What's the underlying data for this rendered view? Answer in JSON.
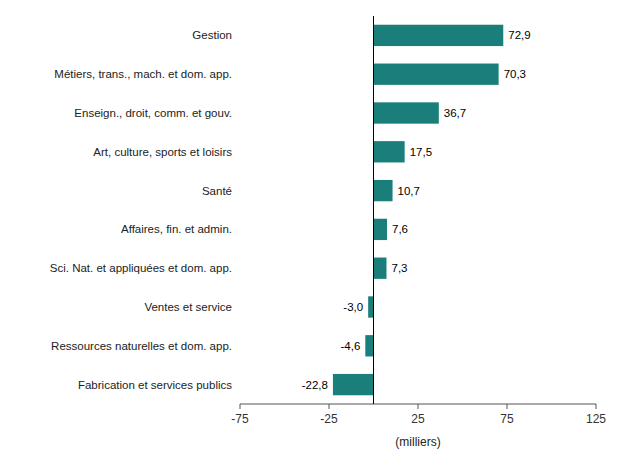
{
  "chart_data": {
    "type": "bar",
    "orientation": "horizontal",
    "categories": [
      "Fabrication et services publics",
      "Ressources naturelles et dom. app.",
      "Ventes et service",
      "Sci. Nat. et appliquées et dom. app.",
      "Affaires, fin. et admin.",
      "Santé",
      "Art, culture, sports et loisirs",
      "Enseign., droit, comm. et gouv.",
      "Métiers, trans., mach. et dom. app.",
      "Gestion"
    ],
    "values": [
      -22.8,
      -4.6,
      -3.0,
      7.3,
      7.6,
      10.7,
      17.5,
      36.7,
      70.3,
      72.9
    ],
    "value_labels": [
      "-22,8",
      "-4,6",
      "-3,0",
      "7,3",
      "7,6",
      "10,7",
      "17,5",
      "36,7",
      "70,3",
      "72,9"
    ],
    "data_labels": true,
    "color": "#1a7f7a",
    "xlabel": "(milliers)",
    "xlim": [
      -75,
      125
    ],
    "xticks": [
      -75,
      -25,
      25,
      75,
      125
    ]
  }
}
